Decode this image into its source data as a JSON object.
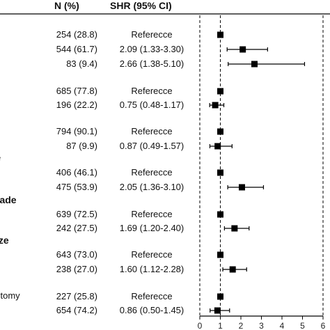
{
  "header": {
    "n_label": "N (%)",
    "shr_label": "SHR (95% CI)"
  },
  "groups": [
    {
      "label": "",
      "rows": [
        {
          "n": "254 (28.8)",
          "shr": "Referecce",
          "est": 1,
          "lo": 1,
          "hi": 1
        },
        {
          "n": "544 (61.7)",
          "shr": "2.09 (1.33-3.30)",
          "est": 2.09,
          "lo": 1.33,
          "hi": 3.3
        },
        {
          "n": "83 (9.4)",
          "shr": "2.66 (1.38-5.10)",
          "est": 2.66,
          "lo": 1.38,
          "hi": 5.1
        }
      ]
    },
    {
      "label": "",
      "rows": [
        {
          "n": "685 (77.8)",
          "shr": "Referecce",
          "est": 1,
          "lo": 1,
          "hi": 1
        },
        {
          "n": "196 (22.2)",
          "shr": "0.75 (0.48-1.17)",
          "est": 0.75,
          "lo": 0.48,
          "hi": 1.17
        }
      ]
    },
    {
      "label": "",
      "rows": [
        {
          "n": "794 (90.1)",
          "shr": "Referecce",
          "est": 1,
          "lo": 1,
          "hi": 1
        },
        {
          "n": "87 (9.9)",
          "shr": "0.87 (0.49-1.57)",
          "est": 0.87,
          "lo": 0.49,
          "hi": 1.57
        }
      ]
    },
    {
      "label": "e",
      "rows": [
        {
          "n": "406 (46.1)",
          "shr": "Referecce",
          "est": 1,
          "lo": 1,
          "hi": 1
        },
        {
          "n": "475 (53.9)",
          "shr": "2.05 (1.36-3.10)",
          "est": 2.05,
          "lo": 1.36,
          "hi": 3.1
        }
      ]
    },
    {
      "label": "rade",
      "rows": [
        {
          "n": "639 (72.5)",
          "shr": "Referecce",
          "est": 1,
          "lo": 1,
          "hi": 1
        },
        {
          "n": "242 (27.5)",
          "shr": "1.69 (1.20-2.40)",
          "est": 1.69,
          "lo": 1.2,
          "hi": 2.4
        }
      ]
    },
    {
      "label": "ize",
      "rows": [
        {
          "n": "643 (73.0)",
          "shr": "Referecce",
          "est": 1,
          "lo": 1,
          "hi": 1
        },
        {
          "n": "238 (27.0)",
          "shr": "1.60 (1.12-2.28)",
          "est": 1.6,
          "lo": 1.12,
          "hi": 2.28
        }
      ]
    },
    {
      "label": "ctomy",
      "rows": [
        {
          "n": "227 (25.8)",
          "shr": "Referecce",
          "est": 1,
          "lo": 1,
          "hi": 1
        },
        {
          "n": "654 (74.2)",
          "shr": "0.86 (0.50-1.45)",
          "est": 0.86,
          "lo": 0.5,
          "hi": 1.45
        }
      ]
    }
  ],
  "chart_data": {
    "type": "forest",
    "x_ticks": [
      "0",
      "1",
      "2",
      "3",
      "4",
      "5",
      "6"
    ],
    "xlim": [
      0,
      6
    ],
    "reference_line": 1,
    "series": [
      {
        "n": "254 (28.8)",
        "estimate": 1,
        "lower": 1,
        "upper": 1
      },
      {
        "n": "544 (61.7)",
        "estimate": 2.09,
        "lower": 1.33,
        "upper": 3.3
      },
      {
        "n": "83 (9.4)",
        "estimate": 2.66,
        "lower": 1.38,
        "upper": 5.1
      },
      {
        "n": "685 (77.8)",
        "estimate": 1,
        "lower": 1,
        "upper": 1
      },
      {
        "n": "196 (22.2)",
        "estimate": 0.75,
        "lower": 0.48,
        "upper": 1.17
      },
      {
        "n": "794 (90.1)",
        "estimate": 1,
        "lower": 1,
        "upper": 1
      },
      {
        "n": "87 (9.9)",
        "estimate": 0.87,
        "lower": 0.49,
        "upper": 1.57
      },
      {
        "n": "406 (46.1)",
        "estimate": 1,
        "lower": 1,
        "upper": 1
      },
      {
        "n": "475 (53.9)",
        "estimate": 2.05,
        "lower": 1.36,
        "upper": 3.1
      },
      {
        "n": "639 (72.5)",
        "estimate": 1,
        "lower": 1,
        "upper": 1
      },
      {
        "n": "242 (27.5)",
        "estimate": 1.69,
        "lower": 1.2,
        "upper": 2.4
      },
      {
        "n": "643 (73.0)",
        "estimate": 1,
        "lower": 1,
        "upper": 1
      },
      {
        "n": "238 (27.0)",
        "estimate": 1.6,
        "lower": 1.12,
        "upper": 2.28
      },
      {
        "n": "227 (25.8)",
        "estimate": 1,
        "lower": 1,
        "upper": 1
      },
      {
        "n": "654 (74.2)",
        "estimate": 0.86,
        "lower": 0.5,
        "upper": 1.45
      }
    ]
  }
}
